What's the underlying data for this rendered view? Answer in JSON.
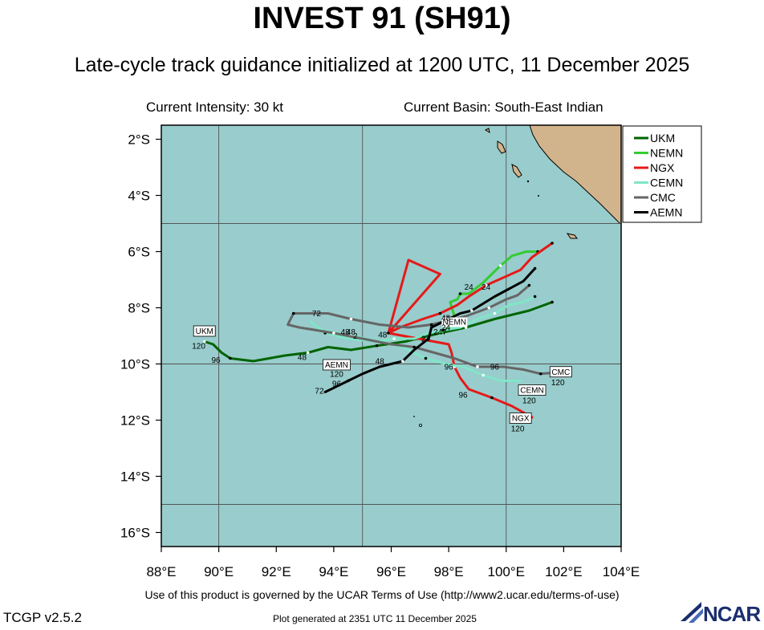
{
  "header": {
    "title": "INVEST 91 (SH91)",
    "subtitle": "Late-cycle track guidance initialized at 1200 UTC, 11 December 2025",
    "current_intensity": "Current Intensity: 30 kt",
    "current_basin": "Current Basin: South-East Indian"
  },
  "footer": {
    "terms": "Use of this product is governed by the UCAR Terms of Use (http://www2.ucar.edu/terms-of-use)",
    "version": "TCGP v2.5.2",
    "generated": "Plot generated at 2351 UTC   11 December 2025",
    "logo_text": "NCAR"
  },
  "colors": {
    "ocean": "#99cccc",
    "land": "#d2b48c"
  },
  "chart_data": {
    "type": "map",
    "lon_range": [
      88,
      104
    ],
    "lat_range": [
      -16.5,
      -1.5
    ],
    "lon_ticks": [
      "88°E",
      "90°E",
      "92°E",
      "94°E",
      "96°E",
      "98°E",
      "100°E",
      "102°E",
      "104°E"
    ],
    "lat_ticks": [
      "2°S",
      "4°S",
      "6°S",
      "8°S",
      "10°S",
      "12°S",
      "14°S",
      "16°S"
    ],
    "legend_position": "top-right",
    "legend": [
      {
        "name": "UKM",
        "color": "#006400"
      },
      {
        "name": "NEMN",
        "color": "#33cc33"
      },
      {
        "name": "NGX",
        "color": "#e61919"
      },
      {
        "name": "CEMN",
        "color": "#80e6c8"
      },
      {
        "name": "CMC",
        "color": "#666666"
      },
      {
        "name": "AEMN",
        "color": "#000000"
      }
    ],
    "tracks": [
      {
        "name": "UKM",
        "color": "#006400",
        "points": [
          [
            101.6,
            -7.8
          ],
          [
            100.8,
            -8.1
          ],
          [
            99.6,
            -8.4
          ],
          [
            98.6,
            -8.7
          ],
          [
            97.7,
            -8.9
          ],
          [
            96.5,
            -9.2
          ],
          [
            95.5,
            -9.35
          ],
          [
            94.6,
            -9.5
          ],
          [
            93.8,
            -9.4
          ],
          [
            93.1,
            -9.6
          ],
          [
            92.3,
            -9.7
          ],
          [
            91.2,
            -9.9
          ],
          [
            90.4,
            -9.8
          ],
          [
            90.1,
            -9.6
          ],
          [
            89.8,
            -9.3
          ],
          [
            89.5,
            -9.2
          ]
        ],
        "labels": [
          {
            "text": "48",
            "lon": 92.9,
            "lat": -9.85
          },
          {
            "text": "96",
            "lon": 89.9,
            "lat": -9.95
          }
        ],
        "end_label": {
          "text": "UKM",
          "lon": 89.5,
          "lat": -8.9
        },
        "end_value": {
          "text": "120",
          "lon": 89.3,
          "lat": -9.45
        }
      },
      {
        "name": "NEMN",
        "color": "#33cc33",
        "points": [
          [
            101.1,
            -6.0
          ],
          [
            100.7,
            -6.0
          ],
          [
            100.2,
            -6.15
          ],
          [
            99.8,
            -6.5
          ],
          [
            99.2,
            -7.1
          ],
          [
            98.7,
            -7.5
          ],
          [
            98.4,
            -7.5
          ],
          [
            98.3,
            -7.7
          ],
          [
            98.05,
            -7.8
          ],
          [
            98.2,
            -8.3
          ],
          [
            98.0,
            -8.7
          ],
          [
            97.7,
            -8.9
          ]
        ],
        "labels": [
          {
            "text": "24",
            "lon": 98.7,
            "lat": -7.35
          },
          {
            "text": "48",
            "lon": 97.9,
            "lat": -8.5
          }
        ]
      },
      {
        "name": "NGX",
        "color": "#e61919",
        "points": [
          [
            101.6,
            -5.7
          ],
          [
            100.9,
            -6.2
          ],
          [
            100.5,
            -6.65
          ],
          [
            99.3,
            -7.2
          ],
          [
            98.7,
            -7.6
          ],
          [
            98.3,
            -7.9
          ],
          [
            97.7,
            -8.2
          ],
          [
            97.1,
            -8.4
          ],
          [
            96.3,
            -8.7
          ],
          [
            95.9,
            -8.9
          ],
          [
            97.7,
            -6.8
          ],
          [
            96.6,
            -6.3
          ],
          [
            95.9,
            -8.9
          ],
          [
            98.0,
            -9.3
          ],
          [
            98.1,
            -9.6
          ],
          [
            98.2,
            -10.1
          ],
          [
            98.4,
            -10.5
          ],
          [
            98.7,
            -10.9
          ],
          [
            99.5,
            -11.2
          ],
          [
            100.2,
            -11.5
          ],
          [
            100.9,
            -11.9
          ]
        ],
        "labels": [
          {
            "text": "24",
            "lon": 99.3,
            "lat": -7.35
          },
          {
            "text": "48",
            "lon": 95.7,
            "lat": -9.05
          },
          {
            "text": "96",
            "lon": 98.5,
            "lat": -11.2
          }
        ],
        "end_label": {
          "text": "NGX",
          "lon": 100.5,
          "lat": -12.0
        },
        "end_value": {
          "text": "120",
          "lon": 100.4,
          "lat": -12.4
        }
      },
      {
        "name": "CEMN",
        "color": "#80e6c8",
        "points": [
          [
            101.0,
            -7.6
          ],
          [
            100.6,
            -7.8
          ],
          [
            100.1,
            -7.9
          ],
          [
            99.6,
            -8.2
          ],
          [
            99.0,
            -8.4
          ],
          [
            98.4,
            -8.7
          ],
          [
            97.8,
            -8.8
          ],
          [
            97.3,
            -8.9
          ],
          [
            96.8,
            -9.1
          ],
          [
            96.1,
            -9.1
          ],
          [
            95.5,
            -9.2
          ],
          [
            94.5,
            -9.1
          ],
          [
            93.7,
            -8.9
          ],
          [
            93.2,
            -8.5
          ],
          [
            93.6,
            -8.8
          ],
          [
            94.6,
            -9.0
          ],
          [
            95.6,
            -9.2
          ],
          [
            96.4,
            -9.4
          ],
          [
            97.2,
            -9.8
          ],
          [
            97.9,
            -10.0
          ],
          [
            98.5,
            -10.1
          ],
          [
            99.2,
            -10.4
          ],
          [
            99.8,
            -10.6
          ],
          [
            100.5,
            -10.6
          ]
        ],
        "labels": [
          {
            "text": "48",
            "lon": 94.4,
            "lat": -8.95
          },
          {
            "text": "96",
            "lon": 98.0,
            "lat": -10.2
          }
        ],
        "end_label": {
          "text": "CEMN",
          "lon": 100.9,
          "lat": -11.0
        },
        "end_value": {
          "text": "120",
          "lon": 100.8,
          "lat": -11.4
        }
      },
      {
        "name": "CMC",
        "color": "#666666",
        "points": [
          [
            100.8,
            -7.2
          ],
          [
            100.4,
            -7.55
          ],
          [
            100.0,
            -7.7
          ],
          [
            99.4,
            -8.0
          ],
          [
            98.6,
            -8.3
          ],
          [
            98.2,
            -8.4
          ],
          [
            97.4,
            -8.6
          ],
          [
            96.6,
            -8.7
          ],
          [
            95.6,
            -8.6
          ],
          [
            94.6,
            -8.4
          ],
          [
            93.8,
            -8.2
          ],
          [
            93.2,
            -8.2
          ],
          [
            92.6,
            -8.2
          ],
          [
            92.4,
            -8.6
          ],
          [
            92.8,
            -8.7
          ],
          [
            94.0,
            -8.9
          ],
          [
            95.0,
            -9.1
          ],
          [
            96.0,
            -9.3
          ],
          [
            96.8,
            -9.4
          ],
          [
            97.5,
            -9.6
          ],
          [
            98.2,
            -9.8
          ],
          [
            99.0,
            -10.1
          ],
          [
            99.9,
            -10.1
          ],
          [
            100.6,
            -10.2
          ],
          [
            101.2,
            -10.35
          ],
          [
            101.8,
            -10.3
          ],
          [
            102.2,
            -10.35
          ]
        ],
        "labels": [
          {
            "text": "72",
            "lon": 93.4,
            "lat": -8.3
          },
          {
            "text": "96",
            "lon": 99.6,
            "lat": -10.2
          }
        ],
        "end_label": {
          "text": "CMC",
          "lon": 101.9,
          "lat": -10.35
        },
        "end_value": {
          "text": "120",
          "lon": 101.8,
          "lat": -10.75
        }
      },
      {
        "name": "AEMN",
        "color": "#000000",
        "points": [
          [
            101.0,
            -6.6
          ],
          [
            100.6,
            -7.05
          ],
          [
            99.6,
            -7.6
          ],
          [
            98.8,
            -8.1
          ],
          [
            98.4,
            -8.2
          ],
          [
            98.0,
            -8.4
          ],
          [
            97.4,
            -8.7
          ],
          [
            97.3,
            -9.1
          ],
          [
            96.8,
            -9.5
          ],
          [
            96.4,
            -9.9
          ],
          [
            95.6,
            -10.1
          ],
          [
            95.0,
            -10.35
          ],
          [
            94.5,
            -10.6
          ],
          [
            94.0,
            -10.85
          ],
          [
            93.7,
            -11.0
          ]
        ],
        "labels": [
          {
            "text": "24",
            "lon": 97.2,
            "lat": -9.2
          },
          {
            "text": "48",
            "lon": 95.6,
            "lat": -10.0
          },
          {
            "text": "72",
            "lon": 93.5,
            "lat": -11.05
          },
          {
            "text": "96",
            "lon": 94.1,
            "lat": -10.8
          }
        ],
        "end_label": {
          "text": "AEMN",
          "lon": 94.1,
          "lat": -10.1
        },
        "end_value": {
          "text": "120",
          "lon": 94.1,
          "lat": -10.45
        }
      }
    ],
    "cluster_labels": [
      {
        "text": "NEMN",
        "lon": 98.2,
        "lat": -8.6
      },
      {
        "text": "247",
        "lon": 97.7,
        "lat": -8.95
      },
      {
        "text": "48",
        "lon": 97.9,
        "lat": -8.45
      },
      {
        "text": "24",
        "lon": 97.9,
        "lat": -8.8
      },
      {
        "text": "48",
        "lon": 94.6,
        "lat": -8.95
      },
      {
        "text": "2",
        "lon": 94.75,
        "lat": -9.1
      }
    ]
  }
}
